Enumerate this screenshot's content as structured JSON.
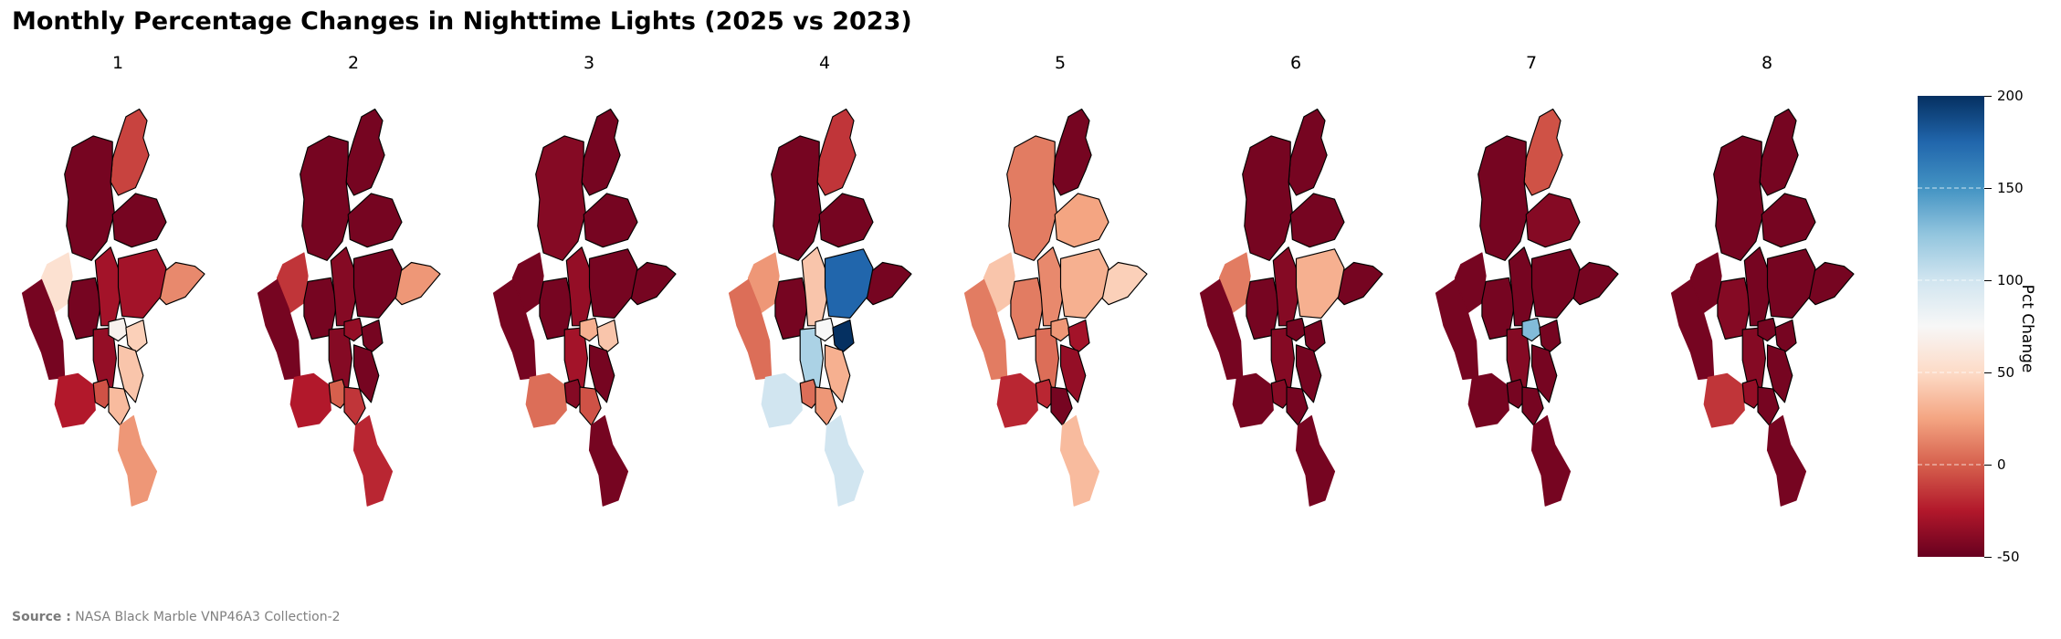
{
  "title": "Monthly Percentage Changes in Nighttime Lights (2025 vs 2023)",
  "source_label": "Source :",
  "source_text": "NASA Black Marble VNP46A3 Collection-2",
  "colorbar": {
    "title": "Pct Change",
    "min": -50,
    "max": 200,
    "ticks": [
      "200",
      "150",
      "100",
      "50",
      "0",
      "-50"
    ],
    "tick_values": [
      200,
      150,
      100,
      50,
      0,
      -50
    ],
    "colormap": [
      "#67001f",
      "#b2182b",
      "#d6604d",
      "#f4a582",
      "#fddbc7",
      "#f7f7f7",
      "#d1e5f0",
      "#92c5de",
      "#4393c3",
      "#2166ac",
      "#053061"
    ]
  },
  "chart_data": {
    "type": "choropleth",
    "region_order": [
      "kachin",
      "sagaing",
      "chin",
      "magway",
      "mandalay",
      "shan_n",
      "shan_e",
      "shan_s",
      "rakhine",
      "bago",
      "ayeyarwady",
      "yangon",
      "naypyitaw",
      "kayah",
      "kayin",
      "mon",
      "tanintharyi"
    ],
    "months": [
      {
        "label": "1",
        "values": [
          -10,
          -45,
          55,
          -45,
          -30,
          -45,
          15,
          -30,
          -45,
          -35,
          -25,
          -5,
          70,
          45,
          40,
          35,
          20
        ]
      },
      {
        "label": "2",
        "values": [
          -45,
          -45,
          -15,
          -45,
          -40,
          -45,
          20,
          -45,
          -45,
          -40,
          -25,
          0,
          -35,
          -45,
          -45,
          -15,
          -20
        ]
      },
      {
        "label": "3",
        "values": [
          -45,
          -40,
          -45,
          -45,
          -35,
          -45,
          -45,
          -45,
          -45,
          -30,
          5,
          -40,
          30,
          40,
          -45,
          -5,
          -45
        ]
      },
      {
        "label": "4",
        "values": [
          -15,
          -45,
          20,
          -45,
          40,
          -45,
          -45,
          175,
          5,
          115,
          100,
          5,
          75,
          200,
          30,
          20,
          100
        ]
      },
      {
        "label": "5",
        "values": [
          -45,
          10,
          40,
          10,
          15,
          25,
          45,
          30,
          10,
          5,
          -20,
          -20,
          20,
          -30,
          -35,
          -45,
          35
        ]
      },
      {
        "label": "6",
        "values": [
          -45,
          -45,
          10,
          -45,
          -40,
          -45,
          -45,
          30,
          -45,
          -40,
          -45,
          -40,
          -45,
          -45,
          -45,
          -45,
          -45
        ]
      },
      {
        "label": "7",
        "values": [
          -5,
          -45,
          -45,
          -45,
          -45,
          -40,
          -45,
          -45,
          -45,
          -40,
          -45,
          -45,
          130,
          -45,
          -45,
          -45,
          -45
        ]
      },
      {
        "label": "8",
        "values": [
          -45,
          -45,
          -45,
          -40,
          -45,
          -45,
          -45,
          -45,
          -45,
          -40,
          -15,
          -35,
          -45,
          -45,
          -45,
          -45,
          -45
        ]
      }
    ]
  }
}
